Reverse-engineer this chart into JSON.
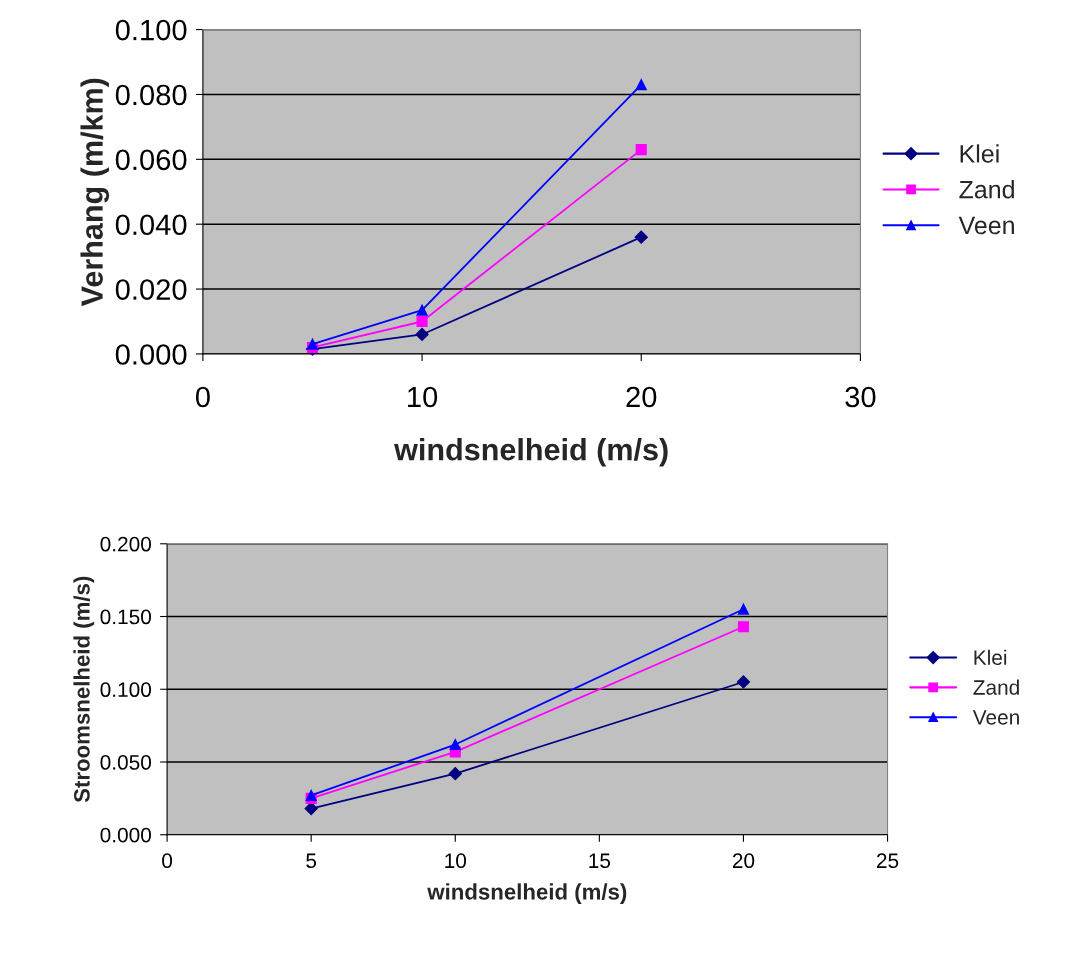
{
  "chart_data": [
    {
      "type": "line",
      "xlabel": "windsnelheid (m/s)",
      "ylabel": "Verhang (m/km)",
      "x": [
        5,
        10,
        20
      ],
      "xlim": [
        0,
        30
      ],
      "xticks": [
        0,
        10,
        20,
        30
      ],
      "ylim": [
        0,
        0.1
      ],
      "yticks": [
        {
          "value": 0,
          "label": "0.000"
        },
        {
          "value": 0.02,
          "label": "0.020"
        },
        {
          "value": 0.04,
          "label": "0.040"
        },
        {
          "value": 0.06,
          "label": "0.060"
        },
        {
          "value": 0.08,
          "label": "0.080"
        },
        {
          "value": 0.1,
          "label": "0.100"
        }
      ],
      "grid": "y",
      "legend": "right",
      "series": [
        {
          "name": "Klei",
          "color": "#000080",
          "marker": "diamond",
          "values": [
            0.0015,
            0.006,
            0.036
          ]
        },
        {
          "name": "Zand",
          "color": "#ff00ff",
          "marker": "square",
          "values": [
            0.002,
            0.01,
            0.063
          ]
        },
        {
          "name": "Veen",
          "color": "#0000ff",
          "marker": "triangle",
          "values": [
            0.003,
            0.0135,
            0.083
          ]
        }
      ]
    },
    {
      "type": "line",
      "xlabel": "windsnelheid (m/s)",
      "ylabel": "Stroomsnelheid (m/s)",
      "x": [
        5,
        10,
        20
      ],
      "xlim": [
        0,
        25
      ],
      "xticks": [
        0,
        5,
        10,
        15,
        20,
        25
      ],
      "ylim": [
        0,
        0.2
      ],
      "yticks": [
        {
          "value": 0,
          "label": "0.000"
        },
        {
          "value": 0.05,
          "label": "0.050"
        },
        {
          "value": 0.1,
          "label": "0.100"
        },
        {
          "value": 0.15,
          "label": "0.150"
        },
        {
          "value": 0.2,
          "label": "0.200"
        }
      ],
      "grid": "y",
      "legend": "right",
      "series": [
        {
          "name": "Klei",
          "color": "#000080",
          "marker": "diamond",
          "values": [
            0.018,
            0.042,
            0.105
          ]
        },
        {
          "name": "Zand",
          "color": "#ff00ff",
          "marker": "square",
          "values": [
            0.025,
            0.057,
            0.143
          ]
        },
        {
          "name": "Veen",
          "color": "#0000ff",
          "marker": "triangle",
          "values": [
            0.027,
            0.062,
            0.155
          ]
        }
      ]
    }
  ]
}
